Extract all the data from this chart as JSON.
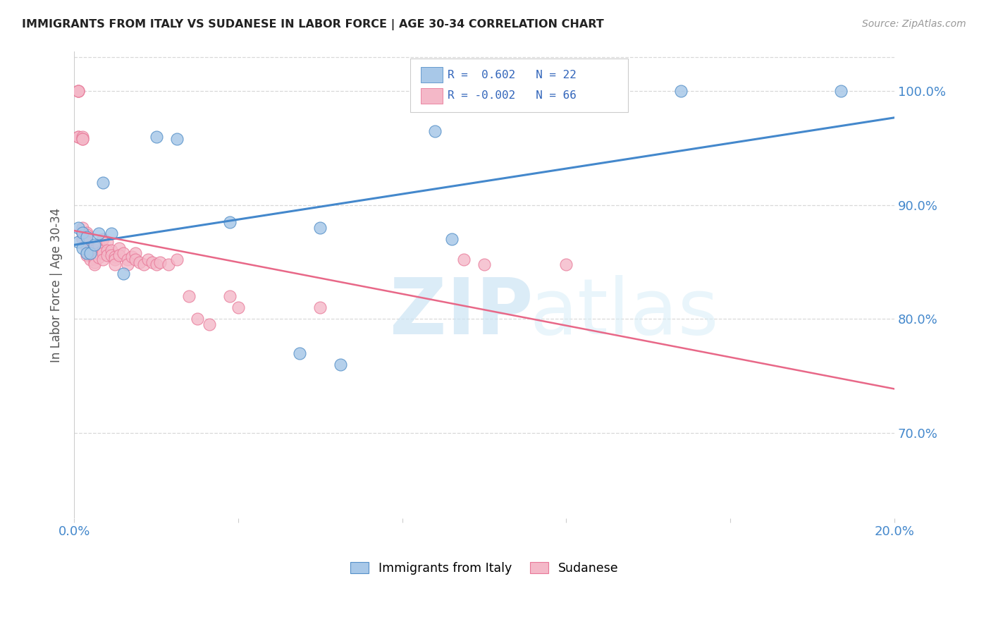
{
  "title": "IMMIGRANTS FROM ITALY VS SUDANESE IN LABOR FORCE | AGE 30-34 CORRELATION CHART",
  "source": "Source: ZipAtlas.com",
  "ylabel": "In Labor Force | Age 30-34",
  "xmin": 0.0,
  "xmax": 0.2,
  "ymin": 0.625,
  "ymax": 1.035,
  "yticks": [
    0.7,
    0.8,
    0.9,
    1.0
  ],
  "xtick_positions": [
    0.0,
    0.04,
    0.08,
    0.12,
    0.16,
    0.2
  ],
  "xtick_labels": [
    "0.0%",
    "",
    "",
    "",
    "",
    "20.0%"
  ],
  "ytick_labels": [
    "70.0%",
    "80.0%",
    "90.0%",
    "100.0%"
  ],
  "legend_italy_R": "R =  0.602",
  "legend_italy_N": "N = 22",
  "legend_sudan_R": "R = -0.002",
  "legend_sudan_N": "N = 66",
  "italy_color": "#a8c8e8",
  "sudan_color": "#f4b8c8",
  "italy_edge_color": "#5590c8",
  "sudan_edge_color": "#e87898",
  "italy_line_color": "#4488cc",
  "sudan_line_color": "#e86888",
  "watermark_zip": "ZIP",
  "watermark_atlas": "atlas",
  "background_color": "#ffffff",
  "grid_color": "#d8d8d8",
  "italy_x": [
    0.001,
    0.001,
    0.002,
    0.002,
    0.003,
    0.003,
    0.004,
    0.005,
    0.006,
    0.007,
    0.009,
    0.012,
    0.02,
    0.025,
    0.038,
    0.055,
    0.06,
    0.065,
    0.088,
    0.092,
    0.148,
    0.187
  ],
  "italy_y": [
    0.868,
    0.88,
    0.862,
    0.876,
    0.858,
    0.872,
    0.858,
    0.865,
    0.875,
    0.92,
    0.875,
    0.84,
    0.96,
    0.958,
    0.885,
    0.77,
    0.88,
    0.76,
    0.965,
    0.87,
    1.0,
    1.0
  ],
  "sudan_x": [
    0.001,
    0.001,
    0.001,
    0.001,
    0.001,
    0.002,
    0.002,
    0.002,
    0.002,
    0.002,
    0.002,
    0.003,
    0.003,
    0.003,
    0.003,
    0.003,
    0.003,
    0.004,
    0.004,
    0.004,
    0.004,
    0.005,
    0.005,
    0.005,
    0.005,
    0.005,
    0.006,
    0.006,
    0.006,
    0.007,
    0.007,
    0.007,
    0.007,
    0.008,
    0.008,
    0.008,
    0.009,
    0.009,
    0.01,
    0.01,
    0.01,
    0.011,
    0.011,
    0.012,
    0.013,
    0.013,
    0.014,
    0.015,
    0.015,
    0.016,
    0.017,
    0.018,
    0.019,
    0.02,
    0.021,
    0.023,
    0.025,
    0.028,
    0.03,
    0.033,
    0.038,
    0.04,
    0.095,
    0.1,
    0.06,
    0.12
  ],
  "sudan_y": [
    1.0,
    1.0,
    1.0,
    0.96,
    0.96,
    0.96,
    0.958,
    0.958,
    0.88,
    0.875,
    0.87,
    0.876,
    0.874,
    0.868,
    0.862,
    0.858,
    0.856,
    0.862,
    0.86,
    0.856,
    0.852,
    0.86,
    0.856,
    0.853,
    0.85,
    0.848,
    0.865,
    0.858,
    0.854,
    0.87,
    0.86,
    0.858,
    0.852,
    0.868,
    0.86,
    0.856,
    0.86,
    0.856,
    0.855,
    0.852,
    0.848,
    0.862,
    0.856,
    0.858,
    0.852,
    0.848,
    0.855,
    0.858,
    0.852,
    0.85,
    0.848,
    0.852,
    0.85,
    0.848,
    0.85,
    0.848,
    0.852,
    0.82,
    0.8,
    0.795,
    0.82,
    0.81,
    0.852,
    0.848,
    0.81,
    0.848
  ]
}
